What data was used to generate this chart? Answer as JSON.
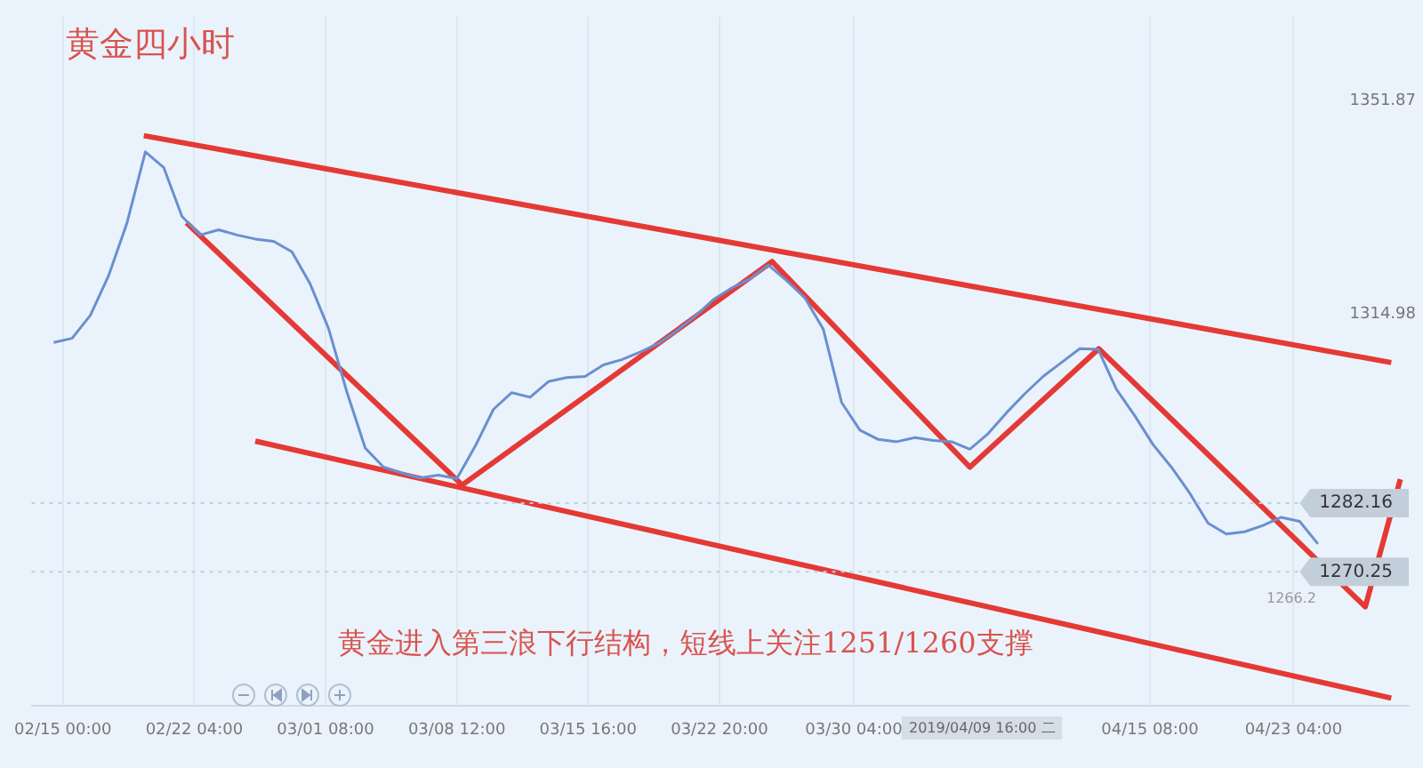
{
  "chart_data": {
    "type": "line",
    "title": "黄金四小时",
    "annotations": [
      "黄金进入第三浪下行结构，短线上关注1251/1260支撑",
      "1266.2",
      "2019/04/09 16:00 二"
    ],
    "series": [
      {
        "color": "#6a8fd0",
        "x": [
          "2019-02-14T12:00",
          "2019-02-15T12:00",
          "2019-02-16T12:00",
          "2019-02-17T12:00",
          "2019-02-18T12:00",
          "2019-02-19T12:00",
          "2019-02-20T12:00",
          "2019-02-21T12:00",
          "2019-02-22T12:00",
          "2019-02-23T12:00",
          "2019-02-24T12:00",
          "2019-02-25T12:00",
          "2019-02-26T12:00",
          "2019-02-27T12:00",
          "2019-02-28T12:00",
          "2019-03-01T12:00",
          "2019-03-02T12:00",
          "2019-03-03T12:00",
          "2019-03-04T12:00",
          "2019-03-05T12:00",
          "2019-03-06T12:00",
          "2019-03-07T12:00",
          "2019-03-08T12:00",
          "2019-03-09T12:00",
          "2019-03-10T12:00",
          "2019-03-11T12:00",
          "2019-03-12T12:00",
          "2019-03-13T12:00",
          "2019-03-14T12:00",
          "2019-03-15T12:00",
          "2019-03-16T12:00",
          "2019-03-17T12:00",
          "2019-03-18T12:00",
          "2019-03-19T12:00",
          "2019-03-20T12:00",
          "2019-03-21T12:00",
          "2019-03-22T12:00",
          "2019-03-23T12:00",
          "2019-03-24T12:00",
          "2019-03-25T12:00",
          "2019-03-26T12:00",
          "2019-03-27T12:00",
          "2019-03-28T12:00",
          "2019-03-29T12:00",
          "2019-03-30T12:00",
          "2019-03-31T12:00",
          "2019-04-01T12:00",
          "2019-04-02T12:00",
          "2019-04-03T12:00",
          "2019-04-04T12:00",
          "2019-04-05T12:00",
          "2019-04-06T12:00",
          "2019-04-07T12:00",
          "2019-04-08T12:00",
          "2019-04-09T12:00",
          "2019-04-10T12:00",
          "2019-04-11T12:00",
          "2019-04-12T12:00",
          "2019-04-13T12:00",
          "2019-04-14T12:00",
          "2019-04-15T12:00",
          "2019-04-16T12:00",
          "2019-04-17T12:00",
          "2019-04-18T12:00",
          "2019-04-19T12:00",
          "2019-04-20T12:00",
          "2019-04-21T12:00",
          "2019-04-22T12:00",
          "2019-04-23T12:00",
          "2019-04-24T12:00"
        ],
        "values": [
          1310.0,
          1310.7,
          1314.7,
          1321.6,
          1330.7,
          1343.0,
          1340.3,
          1331.8,
          1328.6,
          1329.5,
          1328.6,
          1327.9,
          1327.5,
          1325.7,
          1320.1,
          1312.4,
          1301.4,
          1291.7,
          1288.4,
          1287.4,
          1286.5,
          1287.0,
          1286.4,
          1292.0,
          1298.4,
          1301.3,
          1300.5,
          1303.2,
          1303.9,
          1304.1,
          1306.1,
          1307.0,
          1308.3,
          1309.8,
          1312.0,
          1314.5,
          1317.4,
          1319.4,
          1321.0,
          1323.4,
          1320.7,
          1317.7,
          1312.3,
          1299.6,
          1294.8,
          1293.2,
          1292.8,
          1293.5,
          1293.0,
          1292.8,
          1291.5,
          1294.2,
          1297.8,
          1301.1,
          1304.1,
          1306.5,
          1308.9,
          1308.8,
          1301.9,
          1297.3,
          1292.3,
          1288.4,
          1283.9,
          1278.7,
          1276.8,
          1277.2,
          1278.3,
          1279.7,
          1279.0,
          1275.1
        ]
      },
      {
        "color": "#e53935",
        "x": [
          "2019-02-19T10:00",
          "2019-04-28T12:00"
        ],
        "values": [
          1345.8,
          1306.5
        ]
      },
      {
        "color": "#e53935",
        "x": [
          "2019-02-25T12:00",
          "2019-04-28T12:00"
        ],
        "values": [
          1292.9,
          1248.4
        ]
      },
      {
        "color": "#e53935",
        "x": [
          "2019-02-21T18:00",
          "2019-03-08T19:00",
          "2019-03-25T17:00",
          "2019-04-05T12:00",
          "2019-04-12T13:00",
          "2019-04-27T02:00",
          "2019-04-29T00:00"
        ],
        "values": [
          1330.7,
          1285.3,
          1324.0,
          1288.4,
          1308.9,
          1264.2,
          1286.3
        ]
      }
    ],
    "ref_lines": [
      {
        "axis": "y",
        "value": 1282.16,
        "label": "1282.16",
        "color": "#c3cedb"
      },
      {
        "axis": "y",
        "value": 1270.25,
        "label": "1270.25",
        "color": "#c3cedb"
      }
    ],
    "xlim": [
      "2019-02-13T07:00",
      "2019-04-29T11:00"
    ],
    "xticks": [
      {
        "value": "2019-02-15T00:00",
        "label": "02/15 00:00"
      },
      {
        "value": "2019-02-22T04:00",
        "label": "02/22 04:00"
      },
      {
        "value": "2019-03-01T08:00",
        "label": "03/01 08:00"
      },
      {
        "value": "2019-03-08T12:00",
        "label": "03/08 12:00"
      },
      {
        "value": "2019-03-15T16:00",
        "label": "03/15 16:00"
      },
      {
        "value": "2019-03-22T20:00",
        "label": "03/22 20:00"
      },
      {
        "value": "2019-03-30T04:00",
        "label": "03/30 04:00"
      },
      {
        "value": "2019-04-15T08:00",
        "label": "04/15 08:00"
      },
      {
        "value": "2019-04-23T04:00",
        "label": "04/23 04:00"
      }
    ],
    "ylim": [
      1247,
      1366.4
    ],
    "yticks": [
      1351.87,
      1314.98
    ],
    "grid": "x"
  }
}
